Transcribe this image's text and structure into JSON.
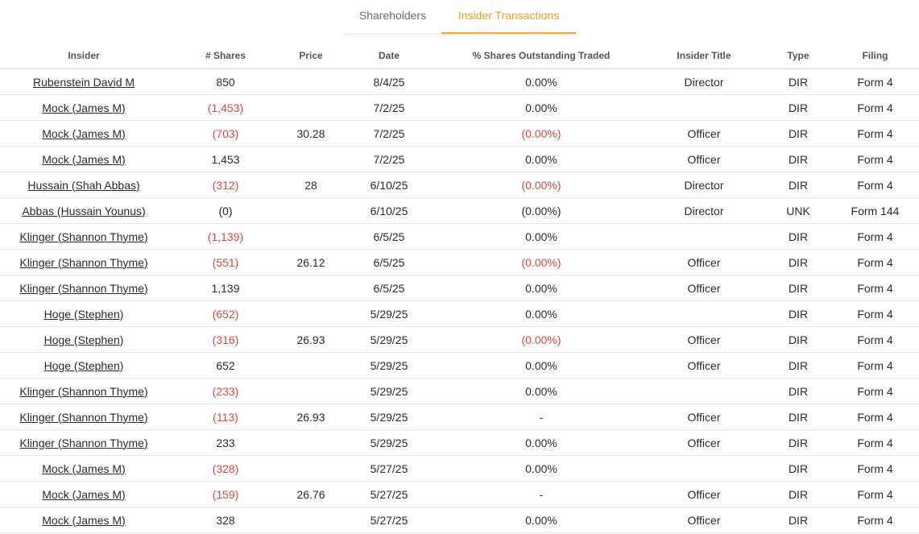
{
  "tabs": [
    {
      "label": "Shareholders",
      "active": false
    },
    {
      "label": "Insider Transactions",
      "active": true
    }
  ],
  "colors": {
    "accent": "#f5a623",
    "negative": "#e0473c"
  },
  "table": {
    "headers": [
      "Insider",
      "# Shares",
      "Price",
      "Date",
      "% Shares Outstanding Traded",
      "Insider Title",
      "Type",
      "Filing"
    ],
    "rows": [
      {
        "insider": "Rubenstein David M",
        "shares": "850",
        "shares_neg": false,
        "price": "",
        "date": "8/4/25",
        "pct": "0.00%",
        "pct_neg": false,
        "title": "Director",
        "type": "DIR",
        "filing": "Form 4"
      },
      {
        "insider": "Mock (James M)",
        "shares": "(1,453)",
        "shares_neg": true,
        "price": "",
        "date": "7/2/25",
        "pct": "0.00%",
        "pct_neg": false,
        "title": "",
        "type": "DIR",
        "filing": "Form 4"
      },
      {
        "insider": "Mock (James M)",
        "shares": "(703)",
        "shares_neg": true,
        "price": "30.28",
        "date": "7/2/25",
        "pct": "(0.00%)",
        "pct_neg": true,
        "title": "Officer",
        "type": "DIR",
        "filing": "Form 4"
      },
      {
        "insider": "Mock (James M)",
        "shares": "1,453",
        "shares_neg": false,
        "price": "",
        "date": "7/2/25",
        "pct": "0.00%",
        "pct_neg": false,
        "title": "Officer",
        "type": "DIR",
        "filing": "Form 4"
      },
      {
        "insider": "Hussain (Shah Abbas)",
        "shares": "(312)",
        "shares_neg": true,
        "price": "28",
        "date": "6/10/25",
        "pct": "(0.00%)",
        "pct_neg": true,
        "title": "Director",
        "type": "DIR",
        "filing": "Form 4"
      },
      {
        "insider": "Abbas (Hussain Younus)",
        "shares": "(0)",
        "shares_neg": false,
        "price": "",
        "date": "6/10/25",
        "pct": "(0.00%)",
        "pct_neg": false,
        "title": "Director",
        "type": "UNK",
        "filing": "Form 144"
      },
      {
        "insider": "Klinger (Shannon Thyme)",
        "shares": "(1,139)",
        "shares_neg": true,
        "price": "",
        "date": "6/5/25",
        "pct": "0.00%",
        "pct_neg": false,
        "title": "",
        "type": "DIR",
        "filing": "Form 4"
      },
      {
        "insider": "Klinger (Shannon Thyme)",
        "shares": "(551)",
        "shares_neg": true,
        "price": "26.12",
        "date": "6/5/25",
        "pct": "(0.00%)",
        "pct_neg": true,
        "title": "Officer",
        "type": "DIR",
        "filing": "Form 4"
      },
      {
        "insider": "Klinger (Shannon Thyme)",
        "shares": "1,139",
        "shares_neg": false,
        "price": "",
        "date": "6/5/25",
        "pct": "0.00%",
        "pct_neg": false,
        "title": "Officer",
        "type": "DIR",
        "filing": "Form 4"
      },
      {
        "insider": "Hoge (Stephen)",
        "shares": "(652)",
        "shares_neg": true,
        "price": "",
        "date": "5/29/25",
        "pct": "0.00%",
        "pct_neg": false,
        "title": "",
        "type": "DIR",
        "filing": "Form 4"
      },
      {
        "insider": "Hoge (Stephen)",
        "shares": "(316)",
        "shares_neg": true,
        "price": "26.93",
        "date": "5/29/25",
        "pct": "(0.00%)",
        "pct_neg": true,
        "title": "Officer",
        "type": "DIR",
        "filing": "Form 4"
      },
      {
        "insider": "Hoge (Stephen)",
        "shares": "652",
        "shares_neg": false,
        "price": "",
        "date": "5/29/25",
        "pct": "0.00%",
        "pct_neg": false,
        "title": "Officer",
        "type": "DIR",
        "filing": "Form 4"
      },
      {
        "insider": "Klinger (Shannon Thyme)",
        "shares": "(233)",
        "shares_neg": true,
        "price": "",
        "date": "5/29/25",
        "pct": "0.00%",
        "pct_neg": false,
        "title": "",
        "type": "DIR",
        "filing": "Form 4"
      },
      {
        "insider": "Klinger (Shannon Thyme)",
        "shares": "(113)",
        "shares_neg": true,
        "price": "26.93",
        "date": "5/29/25",
        "pct": "-",
        "pct_neg": false,
        "title": "Officer",
        "type": "DIR",
        "filing": "Form 4"
      },
      {
        "insider": "Klinger (Shannon Thyme)",
        "shares": "233",
        "shares_neg": false,
        "price": "",
        "date": "5/29/25",
        "pct": "0.00%",
        "pct_neg": false,
        "title": "Officer",
        "type": "DIR",
        "filing": "Form 4"
      },
      {
        "insider": "Mock (James M)",
        "shares": "(328)",
        "shares_neg": true,
        "price": "",
        "date": "5/27/25",
        "pct": "0.00%",
        "pct_neg": false,
        "title": "",
        "type": "DIR",
        "filing": "Form 4"
      },
      {
        "insider": "Mock (James M)",
        "shares": "(159)",
        "shares_neg": true,
        "price": "26.76",
        "date": "5/27/25",
        "pct": "-",
        "pct_neg": false,
        "title": "Officer",
        "type": "DIR",
        "filing": "Form 4"
      },
      {
        "insider": "Mock (James M)",
        "shares": "328",
        "shares_neg": false,
        "price": "",
        "date": "5/27/25",
        "pct": "0.00%",
        "pct_neg": false,
        "title": "Officer",
        "type": "DIR",
        "filing": "Form 4"
      }
    ]
  }
}
